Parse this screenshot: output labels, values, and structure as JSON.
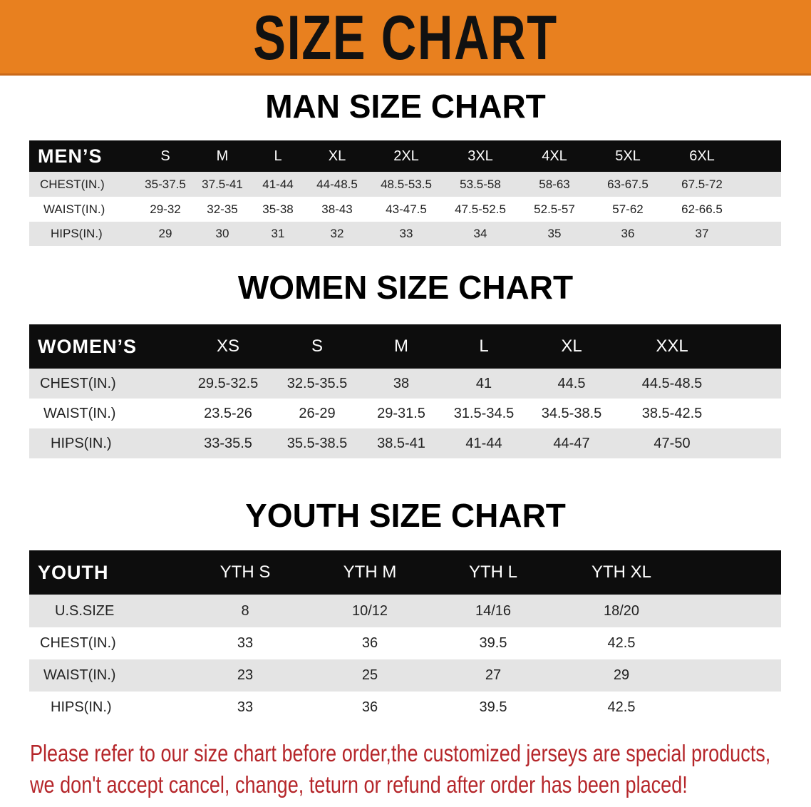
{
  "banner": {
    "title": "SIZE CHART",
    "color": "#e8801f"
  },
  "men": {
    "title": "MAN SIZE CHART",
    "header_label": "MEN’S",
    "sizes": [
      "S",
      "M",
      "L",
      "XL",
      "2XL",
      "3XL",
      "4XL",
      "5XL",
      "6XL"
    ],
    "rows": [
      {
        "label": "CHEST(IN.)",
        "values": [
          "35-37.5",
          "37.5-41",
          "41-44",
          "44-48.5",
          "48.5-53.5",
          "53.5-58",
          "58-63",
          "63-67.5",
          "67.5-72"
        ]
      },
      {
        "label": "WAIST(IN.)",
        "values": [
          "29-32",
          "32-35",
          "35-38",
          "38-43",
          "43-47.5",
          "47.5-52.5",
          "52.5-57",
          "57-62",
          "62-66.5"
        ]
      },
      {
        "label": "HIPS(IN.)",
        "values": [
          "29",
          "30",
          "31",
          "32",
          "33",
          "34",
          "35",
          "36",
          "37"
        ]
      }
    ]
  },
  "women": {
    "title": "WOMEN SIZE CHART",
    "header_label": "WOMEN’S",
    "sizes": [
      "XS",
      "S",
      "M",
      "L",
      "XL",
      "XXL"
    ],
    "rows": [
      {
        "label": "CHEST(IN.)",
        "values": [
          "29.5-32.5",
          "32.5-35.5",
          "38",
          "41",
          "44.5",
          "44.5-48.5"
        ]
      },
      {
        "label": "WAIST(IN.)",
        "values": [
          "23.5-26",
          "26-29",
          "29-31.5",
          "31.5-34.5",
          "34.5-38.5",
          "38.5-42.5"
        ]
      },
      {
        "label": "HIPS(IN.)",
        "values": [
          "33-35.5",
          "35.5-38.5",
          "38.5-41",
          "41-44",
          "44-47",
          "47-50"
        ]
      }
    ]
  },
  "youth": {
    "title": "YOUTH SIZE CHART",
    "header_label": "YOUTH",
    "sizes": [
      "YTH S",
      "YTH M",
      "YTH L",
      "YTH XL"
    ],
    "rows": [
      {
        "label": "U.S.SIZE",
        "values": [
          "8",
          "10/12",
          "14/16",
          "18/20"
        ]
      },
      {
        "label": "CHEST(IN.)",
        "values": [
          "33",
          "36",
          "39.5",
          "42.5"
        ]
      },
      {
        "label": "WAIST(IN.)",
        "values": [
          "23",
          "25",
          "27",
          "29"
        ]
      },
      {
        "label": "HIPS(IN.)",
        "values": [
          "33",
          "36",
          "39.5",
          "42.5"
        ]
      }
    ]
  },
  "notice": {
    "line1": "Please refer to our size chart before order,the customized jerseys are special products,",
    "line2": "we don't accept cancel, change, teturn or refund after order has been placed!",
    "color": "#b5262a"
  }
}
